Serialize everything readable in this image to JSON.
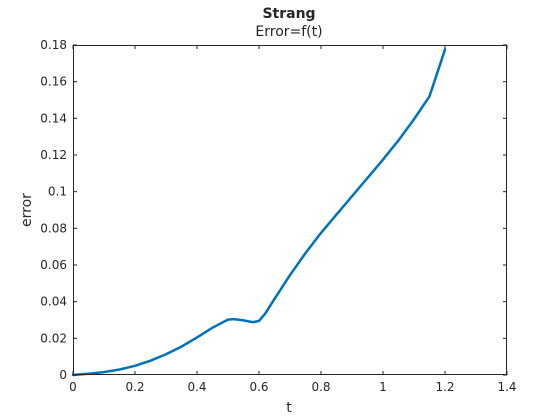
{
  "chart_data": {
    "type": "line",
    "title": "Strang",
    "subtitle": "Error=f(t)",
    "xlabel": "t",
    "ylabel": "error",
    "xlim": [
      0,
      1.4
    ],
    "ylim": [
      0,
      0.18
    ],
    "xticks": [
      0,
      0.2,
      0.4,
      0.6,
      0.8,
      1,
      1.2,
      1.4
    ],
    "xtick_labels": [
      "0",
      "0.2",
      "0.4",
      "0.6",
      "0.8",
      "1",
      "1.2",
      "1.4"
    ],
    "yticks": [
      0,
      0.02,
      0.04,
      0.06,
      0.08,
      0.1,
      0.12,
      0.14,
      0.16,
      0.18
    ],
    "ytick_labels": [
      "0",
      "0.02",
      "0.04",
      "0.06",
      "0.08",
      "0.1",
      "0.12",
      "0.14",
      "0.16",
      "0.18"
    ],
    "grid": false,
    "line_color": "#0072BD",
    "series": [
      {
        "x": [
          0,
          0.05,
          0.1,
          0.15,
          0.2,
          0.25,
          0.3,
          0.35,
          0.4,
          0.45,
          0.5,
          0.52,
          0.55,
          0.58,
          0.6,
          0.62,
          0.65,
          0.7,
          0.75,
          0.8,
          0.85,
          0.9,
          0.95,
          1.0,
          1.05,
          1.1,
          1.15,
          1.2
        ],
        "y": [
          0,
          0.0007,
          0.0016,
          0.003,
          0.005,
          0.0078,
          0.0113,
          0.0155,
          0.0205,
          0.0258,
          0.0302,
          0.0305,
          0.0298,
          0.0288,
          0.0295,
          0.0335,
          0.0415,
          0.0545,
          0.0665,
          0.0775,
          0.0875,
          0.0975,
          0.1075,
          0.1175,
          0.128,
          0.1395,
          0.152,
          0.1775
        ]
      }
    ]
  }
}
